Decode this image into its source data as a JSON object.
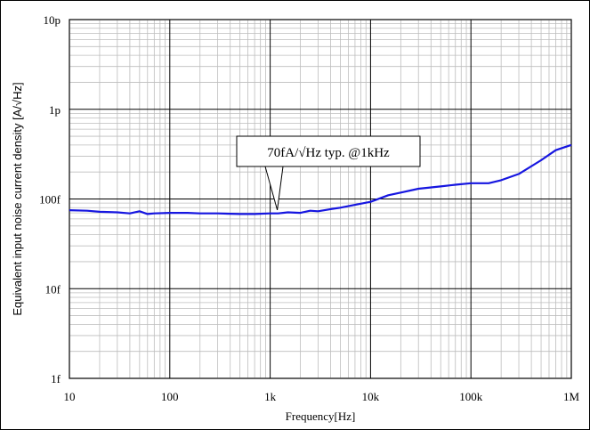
{
  "chart_data": {
    "type": "line",
    "x_scale": "log",
    "y_scale": "log",
    "xlabel": "Frequency[Hz]",
    "ylabel": "Equivalent input noise current density [A/√Hz]",
    "xlim": [
      10,
      1000000
    ],
    "ylim": [
      1e-15,
      1e-11
    ],
    "x_ticks": [
      {
        "value": 10,
        "label": "10"
      },
      {
        "value": 100,
        "label": "100"
      },
      {
        "value": 1000,
        "label": "1k"
      },
      {
        "value": 10000,
        "label": "10k"
      },
      {
        "value": 100000,
        "label": "100k"
      },
      {
        "value": 1000000,
        "label": "1M"
      }
    ],
    "y_ticks": [
      {
        "value": 1e-15,
        "label": "1f"
      },
      {
        "value": 1e-14,
        "label": "10f"
      },
      {
        "value": 1e-13,
        "label": "100f"
      },
      {
        "value": 1e-12,
        "label": "1p"
      },
      {
        "value": 1e-11,
        "label": "10p"
      }
    ],
    "grid": true,
    "annotation": {
      "text": "70fA/√Hz typ. @1kHz",
      "x": 1000,
      "y": 7.2e-14
    },
    "series": [
      {
        "color": "#1616e0",
        "x": [
          10,
          15,
          20,
          30,
          40,
          50,
          60,
          70,
          100,
          150,
          200,
          300,
          500,
          700,
          1000,
          1200,
          1500,
          2000,
          2500,
          3000,
          4000,
          5000,
          7000,
          10000,
          15000,
          20000,
          30000,
          50000,
          70000,
          100000,
          150000,
          200000,
          300000,
          500000,
          700000,
          1000000
        ],
        "y": [
          7.5e-14,
          7.4e-14,
          7.2e-14,
          7.1e-14,
          6.9e-14,
          7.3e-14,
          6.8e-14,
          6.9e-14,
          7e-14,
          7e-14,
          6.9e-14,
          6.9e-14,
          6.8e-14,
          6.8e-14,
          6.9e-14,
          6.9e-14,
          7.1e-14,
          7e-14,
          7.4e-14,
          7.3e-14,
          7.7e-14,
          8e-14,
          8.6e-14,
          9.3e-14,
          1.1e-13,
          1.18e-13,
          1.3e-13,
          1.38e-13,
          1.44e-13,
          1.5e-13,
          1.5e-13,
          1.62e-13,
          1.9e-13,
          2.7e-13,
          3.5e-13,
          4e-13
        ]
      }
    ]
  }
}
